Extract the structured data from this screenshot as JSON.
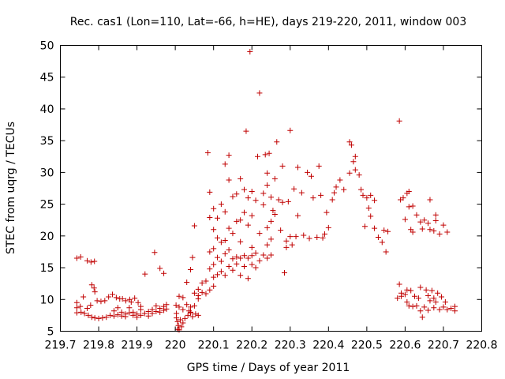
{
  "chart_data": {
    "type": "scatter",
    "title": "Rec. cas1 (Lon=110, Lat=-66, h=HE), days 219-220, 2011, window 003",
    "xlabel": "GPS time / Days of year 2011",
    "ylabel": "STEC from uqrg / TECUs",
    "xlim": [
      219.7,
      220.8
    ],
    "ylim": [
      5,
      50
    ],
    "x_ticks": [
      219.7,
      219.8,
      219.9,
      220,
      220.1,
      220.2,
      220.3,
      220.4,
      220.5,
      220.6,
      220.7,
      220.8
    ],
    "x_tick_labels": [
      "219.7",
      "219.8",
      "219.9",
      "220",
      "220.1",
      "220.2",
      "220.3",
      "220.4",
      "220.5",
      "220.6",
      "220.7",
      "220.8"
    ],
    "y_ticks": [
      5,
      10,
      15,
      20,
      25,
      30,
      35,
      40,
      45,
      50
    ],
    "y_tick_labels": [
      "5",
      "10",
      "15",
      "20",
      "25",
      "30",
      "35",
      "40",
      "45",
      "50"
    ],
    "grid": false,
    "legend": "none",
    "marker": "plus",
    "marker_color": "#c00000",
    "series": [
      {
        "points": [
          [
            219.743,
            16.5
          ],
          [
            219.753,
            16.7
          ],
          [
            219.77,
            16.1
          ],
          [
            219.78,
            15.9
          ],
          [
            219.789,
            16.0
          ],
          [
            219.782,
            12.3
          ],
          [
            219.788,
            11.8
          ],
          [
            219.79,
            11.2
          ],
          [
            219.796,
            9.8
          ],
          [
            219.806,
            9.7
          ],
          [
            219.816,
            9.8
          ],
          [
            219.826,
            10.4
          ],
          [
            219.836,
            10.8
          ],
          [
            219.846,
            10.3
          ],
          [
            219.855,
            10.1
          ],
          [
            219.862,
            10.1
          ],
          [
            219.871,
            9.8
          ],
          [
            219.881,
            10.0
          ],
          [
            219.885,
            9.6
          ],
          [
            219.894,
            10.2
          ],
          [
            219.903,
            9.5
          ],
          [
            219.91,
            8.9
          ],
          [
            219.743,
            9.5
          ],
          [
            219.743,
            8.7
          ],
          [
            219.743,
            7.9
          ],
          [
            219.752,
            8.9
          ],
          [
            219.754,
            8.0
          ],
          [
            219.76,
            10.4
          ],
          [
            219.763,
            7.8
          ],
          [
            219.77,
            8.6
          ],
          [
            219.773,
            7.5
          ],
          [
            219.779,
            9.1
          ],
          [
            219.782,
            7.2
          ],
          [
            219.79,
            7.1
          ],
          [
            219.8,
            7.0
          ],
          [
            219.81,
            7.1
          ],
          [
            219.82,
            7.2
          ],
          [
            219.83,
            7.5
          ],
          [
            219.84,
            8.2
          ],
          [
            219.84,
            7.4
          ],
          [
            219.85,
            8.7
          ],
          [
            219.85,
            7.6
          ],
          [
            219.86,
            8.0
          ],
          [
            219.86,
            7.4
          ],
          [
            219.87,
            7.7
          ],
          [
            219.87,
            7.3
          ],
          [
            219.88,
            8.7
          ],
          [
            219.88,
            7.9
          ],
          [
            219.89,
            8.0
          ],
          [
            219.89,
            7.5
          ],
          [
            219.9,
            7.7
          ],
          [
            219.9,
            7.2
          ],
          [
            219.91,
            8.4
          ],
          [
            219.91,
            7.5
          ],
          [
            219.92,
            7.8
          ],
          [
            219.93,
            8.1
          ],
          [
            219.93,
            7.4
          ],
          [
            219.94,
            8.4
          ],
          [
            219.94,
            7.8
          ],
          [
            219.95,
            9.0
          ],
          [
            219.95,
            8.1
          ],
          [
            219.96,
            8.6
          ],
          [
            219.96,
            8.0
          ],
          [
            219.97,
            8.9
          ],
          [
            219.97,
            8.3
          ],
          [
            219.977,
            9.2
          ],
          [
            219.977,
            8.5
          ],
          [
            219.96,
            14.9
          ],
          [
            219.97,
            14.1
          ],
          [
            219.921,
            14.0
          ],
          [
            219.946,
            17.4
          ],
          [
            220.01,
            10.5
          ],
          [
            220.02,
            10.3
          ],
          [
            220.002,
            9.1
          ],
          [
            220.01,
            8.8
          ],
          [
            220.02,
            8.4
          ],
          [
            220.03,
            9.2
          ],
          [
            220.04,
            8.0
          ],
          [
            220.04,
            8.8
          ],
          [
            220.05,
            9.0
          ],
          [
            220.05,
            11.0
          ],
          [
            220.06,
            10.6
          ],
          [
            220.06,
            11.6
          ],
          [
            220.003,
            7.8
          ],
          [
            220.003,
            7.1
          ],
          [
            220.006,
            6.5
          ],
          [
            220.008,
            5.9
          ],
          [
            220.006,
            5.3
          ],
          [
            220.01,
            5.2
          ],
          [
            220.013,
            6.8
          ],
          [
            220.016,
            5.7
          ],
          [
            220.02,
            6.3
          ],
          [
            220.025,
            7.0
          ],
          [
            220.033,
            7.5
          ],
          [
            220.036,
            8.2
          ],
          [
            220.04,
            7.9
          ],
          [
            220.045,
            7.3
          ],
          [
            220.053,
            7.7
          ],
          [
            220.06,
            7.5
          ],
          [
            220.03,
            12.7
          ],
          [
            220.04,
            14.7
          ],
          [
            220.045,
            16.6
          ],
          [
            220.05,
            21.6
          ],
          [
            220.06,
            10.1
          ],
          [
            220.07,
            11.1
          ],
          [
            220.07,
            12.6
          ],
          [
            220.08,
            12.9
          ],
          [
            220.08,
            10.9
          ],
          [
            220.09,
            11.5
          ],
          [
            220.09,
            14.8
          ],
          [
            220.1,
            12.1
          ],
          [
            220.1,
            13.5
          ],
          [
            220.1,
            15.5
          ],
          [
            220.11,
            13.9
          ],
          [
            220.11,
            16.6
          ],
          [
            220.12,
            14.4
          ],
          [
            220.12,
            16.0
          ],
          [
            220.13,
            13.8
          ],
          [
            220.13,
            17.2
          ],
          [
            220.14,
            15.2
          ],
          [
            220.14,
            17.8
          ],
          [
            220.15,
            16.4
          ],
          [
            220.15,
            14.6
          ],
          [
            220.16,
            16.7
          ],
          [
            220.16,
            15.6
          ],
          [
            220.17,
            16.5
          ],
          [
            220.17,
            13.8
          ],
          [
            220.18,
            16.9
          ],
          [
            220.18,
            15.2
          ],
          [
            220.19,
            16.5
          ],
          [
            220.19,
            13.3
          ],
          [
            220.2,
            16.9
          ],
          [
            220.2,
            15.5
          ],
          [
            220.21,
            17.3
          ],
          [
            220.21,
            15.0
          ],
          [
            220.22,
            16.1
          ],
          [
            220.23,
            17.0
          ],
          [
            220.24,
            16.5
          ],
          [
            220.24,
            18.6
          ],
          [
            220.25,
            17.0
          ],
          [
            220.085,
            33.1
          ],
          [
            220.09,
            17.5
          ],
          [
            220.09,
            22.9
          ],
          [
            220.09,
            26.9
          ],
          [
            220.1,
            18.0
          ],
          [
            220.1,
            21.0
          ],
          [
            220.1,
            24.3
          ],
          [
            220.11,
            19.7
          ],
          [
            220.11,
            22.8
          ],
          [
            220.12,
            19.0
          ],
          [
            220.12,
            25.0
          ],
          [
            220.13,
            19.3
          ],
          [
            220.13,
            23.8
          ],
          [
            220.13,
            31.3
          ],
          [
            220.14,
            21.2
          ],
          [
            220.14,
            28.8
          ],
          [
            220.14,
            32.7
          ],
          [
            220.15,
            20.4
          ],
          [
            220.15,
            26.2
          ],
          [
            220.16,
            22.3
          ],
          [
            220.16,
            26.6
          ],
          [
            220.17,
            19.1
          ],
          [
            220.17,
            22.5
          ],
          [
            220.17,
            29.0
          ],
          [
            220.18,
            23.7
          ],
          [
            220.18,
            27.3
          ],
          [
            220.185,
            36.5
          ],
          [
            220.19,
            21.7
          ],
          [
            220.19,
            26.0
          ],
          [
            220.195,
            49.0
          ],
          [
            220.2,
            18.2
          ],
          [
            220.2,
            23.2
          ],
          [
            220.2,
            27.0
          ],
          [
            220.21,
            25.6
          ],
          [
            220.215,
            32.5
          ],
          [
            220.22,
            42.5
          ],
          [
            220.22,
            20.4
          ],
          [
            220.23,
            24.9
          ],
          [
            220.23,
            26.7
          ],
          [
            220.235,
            32.8
          ],
          [
            220.24,
            21.3
          ],
          [
            220.24,
            28.0
          ],
          [
            220.24,
            29.9
          ],
          [
            220.245,
            33.0
          ],
          [
            220.25,
            19.5
          ],
          [
            220.25,
            22.3
          ],
          [
            220.25,
            26.1
          ],
          [
            220.255,
            24.0
          ],
          [
            220.26,
            23.4
          ],
          [
            220.26,
            29.0
          ],
          [
            220.265,
            34.8
          ],
          [
            220.27,
            25.7
          ],
          [
            220.275,
            20.9
          ],
          [
            220.28,
            31.0
          ],
          [
            220.28,
            25.3
          ],
          [
            220.285,
            14.2
          ],
          [
            220.29,
            19.2
          ],
          [
            220.29,
            18.2
          ],
          [
            220.295,
            25.4
          ],
          [
            220.3,
            19.9
          ],
          [
            220.3,
            36.6
          ],
          [
            220.305,
            18.6
          ],
          [
            220.31,
            27.4
          ],
          [
            220.315,
            19.9
          ],
          [
            220.32,
            23.2
          ],
          [
            220.32,
            30.8
          ],
          [
            220.33,
            26.8
          ],
          [
            220.335,
            20.1
          ],
          [
            220.345,
            30.0
          ],
          [
            220.35,
            19.6
          ],
          [
            220.355,
            29.4
          ],
          [
            220.36,
            26.0
          ],
          [
            220.37,
            19.8
          ],
          [
            220.375,
            31.0
          ],
          [
            220.38,
            26.4
          ],
          [
            220.385,
            19.7
          ],
          [
            220.39,
            20.3
          ],
          [
            220.395,
            23.7
          ],
          [
            220.4,
            21.3
          ],
          [
            220.41,
            25.7
          ],
          [
            220.415,
            26.8
          ],
          [
            220.42,
            27.7
          ],
          [
            220.43,
            28.8
          ],
          [
            220.44,
            27.3
          ],
          [
            220.455,
            34.8
          ],
          [
            220.455,
            29.9
          ],
          [
            220.46,
            34.3
          ],
          [
            220.465,
            31.7
          ],
          [
            220.47,
            32.5
          ],
          [
            220.47,
            30.4
          ],
          [
            220.48,
            29.6
          ],
          [
            220.485,
            27.3
          ],
          [
            220.49,
            26.4
          ],
          [
            220.495,
            21.5
          ],
          [
            220.5,
            26.0
          ],
          [
            220.505,
            24.4
          ],
          [
            220.51,
            26.4
          ],
          [
            220.51,
            23.1
          ],
          [
            220.52,
            25.6
          ],
          [
            220.52,
            21.2
          ],
          [
            220.53,
            19.8
          ],
          [
            220.54,
            19.0
          ],
          [
            220.545,
            20.9
          ],
          [
            220.55,
            17.5
          ],
          [
            220.555,
            20.7
          ],
          [
            220.585,
            38.1
          ],
          [
            220.588,
            25.7
          ],
          [
            220.595,
            26.0
          ],
          [
            220.6,
            22.6
          ],
          [
            220.605,
            26.7
          ],
          [
            220.61,
            27.0
          ],
          [
            220.61,
            24.6
          ],
          [
            220.615,
            21.0
          ],
          [
            220.62,
            20.6
          ],
          [
            220.62,
            24.7
          ],
          [
            220.63,
            23.3
          ],
          [
            220.64,
            22.2
          ],
          [
            220.645,
            21.1
          ],
          [
            220.65,
            22.5
          ],
          [
            220.66,
            22.0
          ],
          [
            220.665,
            21.0
          ],
          [
            220.665,
            25.7
          ],
          [
            220.675,
            20.8
          ],
          [
            220.68,
            23.3
          ],
          [
            220.68,
            22.4
          ],
          [
            220.69,
            20.3
          ],
          [
            220.7,
            21.7
          ],
          [
            220.71,
            20.6
          ],
          [
            220.585,
            12.4
          ],
          [
            220.59,
            10.5
          ],
          [
            220.6,
            10.8
          ],
          [
            220.605,
            9.6
          ],
          [
            220.605,
            11.5
          ],
          [
            220.61,
            9.0
          ],
          [
            220.615,
            11.4
          ],
          [
            220.62,
            8.9
          ],
          [
            220.625,
            10.5
          ],
          [
            220.63,
            9.0
          ],
          [
            220.635,
            10.2
          ],
          [
            220.64,
            8.2
          ],
          [
            220.64,
            11.9
          ],
          [
            220.645,
            7.2
          ],
          [
            220.65,
            8.8
          ],
          [
            220.655,
            11.5
          ],
          [
            220.66,
            8.3
          ],
          [
            220.66,
            10.6
          ],
          [
            220.665,
            9.8
          ],
          [
            220.67,
            11.4
          ],
          [
            220.675,
            8.7
          ],
          [
            220.675,
            10.2
          ],
          [
            220.68,
            9.6
          ],
          [
            220.685,
            11.0
          ],
          [
            220.69,
            8.4
          ],
          [
            220.695,
            10.4
          ],
          [
            220.7,
            8.8
          ],
          [
            220.705,
            9.6
          ],
          [
            220.71,
            8.4
          ],
          [
            220.72,
            8.6
          ],
          [
            220.73,
            8.2
          ],
          [
            220.73,
            8.9
          ],
          [
            220.58,
            10.2
          ],
          [
            220.59,
            11.0
          ]
        ]
      }
    ]
  }
}
